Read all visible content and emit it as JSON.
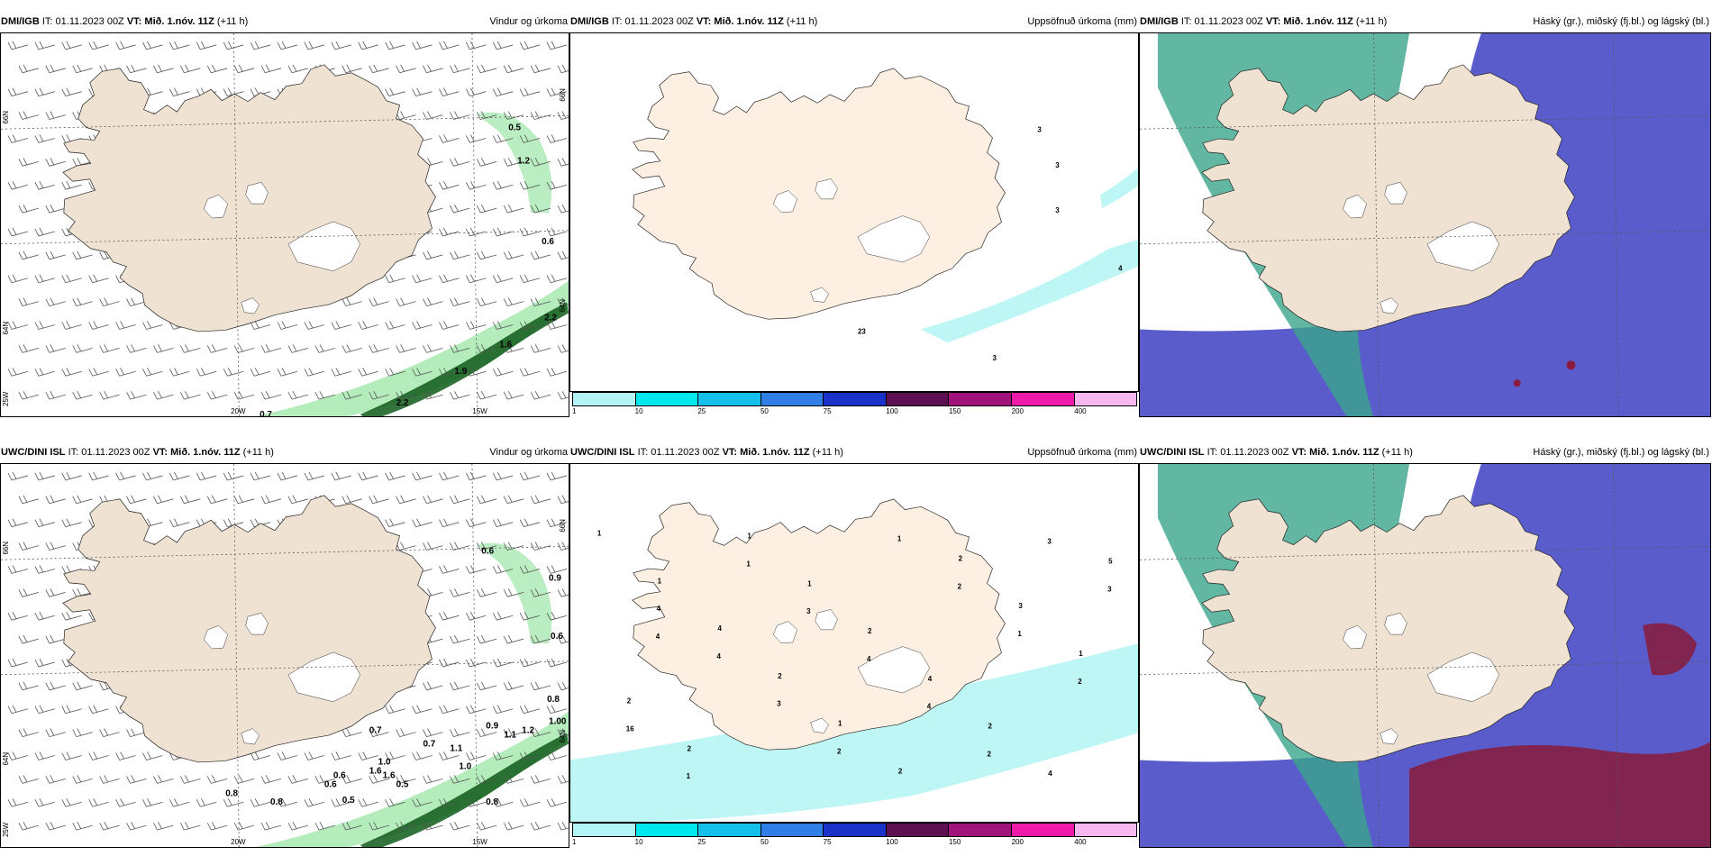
{
  "panels": [
    {
      "model": "DMI/IGB",
      "it_label": "IT:",
      "it_value": "01.11.2023 00Z",
      "vt_label": "VT:",
      "vt_value": "Mið. 1.nóv. 11Z",
      "lead": "(+11 h)",
      "product": "Vindur og úrkoma",
      "lon_labels": [
        "20W",
        "15W"
      ],
      "lat_labels": [
        "66N",
        "64N",
        "25W"
      ],
      "right_lat_labels": [
        "66N",
        "64N"
      ],
      "values": [
        "0.5",
        "1.2",
        "0.6",
        "2.2",
        "1.6",
        "1.9",
        "2.2",
        "0.7"
      ]
    },
    {
      "model": "DMI/IGB",
      "it_label": "IT:",
      "it_value": "01.11.2023 00Z",
      "vt_label": "VT:",
      "vt_value": "Mið. 1.nóv. 11Z",
      "lead": "(+11 h)",
      "product": "Uppsöfnuð úrkoma (mm)",
      "values": [
        "3",
        "3",
        "3",
        "4",
        "3",
        "23"
      ]
    },
    {
      "model": "DMI/IGB",
      "it_label": "IT:",
      "it_value": "01.11.2023 00Z",
      "vt_label": "VT:",
      "vt_value": "Mið. 1.nóv. 11Z",
      "lead": "(+11 h)",
      "product": "Háský (gr.), miðský (fj.bl.) og lágský (bl.)"
    },
    {
      "model": "UWC/DINI ISL",
      "it_label": "IT:",
      "it_value": "01.11.2023 00Z",
      "vt_label": "VT:",
      "vt_value": "Mið. 1.nóv. 11Z",
      "lead": "(+11 h)",
      "product": "Vindur og úrkoma",
      "lon_labels": [
        "20W",
        "15W"
      ],
      "lat_labels": [
        "66N",
        "64N",
        "25W"
      ],
      "right_lat_labels": [
        "66N",
        "64N"
      ],
      "values": [
        "0.6",
        "0.7",
        "0.9",
        "0.6",
        "0.7",
        "1.0",
        "0.6",
        "1.1",
        "0.9",
        "1.1",
        "1.0",
        "1.2",
        "0.8",
        "0.5",
        "0.6",
        "0.8",
        "0.8",
        "1.00",
        "1.6",
        "1.6",
        "0.5",
        "0.8"
      ]
    },
    {
      "model": "UWC/DINI ISL",
      "it_label": "IT:",
      "it_value": "01.11.2023 00Z",
      "vt_label": "VT:",
      "vt_value": "Mið. 1.nóv. 11Z",
      "lead": "(+11 h)",
      "product": "Uppsöfnuð úrkoma (mm)",
      "values": [
        "1",
        "1",
        "4",
        "2",
        "1",
        "2",
        "2",
        "3",
        "1",
        "2",
        "2",
        "1",
        "1",
        "2",
        "4",
        "2",
        "4",
        "5",
        "4",
        "4",
        "3",
        "2",
        "1",
        "2",
        "1",
        "2",
        "16",
        "1",
        "1",
        "3",
        "4",
        "4",
        "2",
        "3",
        "3",
        "4"
      ]
    },
    {
      "model": "UWC/DINI ISL",
      "it_label": "IT:",
      "it_value": "01.11.2023 00Z",
      "vt_label": "VT:",
      "vt_value": "Mið. 1.nóv. 11Z",
      "lead": "(+11 h)",
      "product": "Háský (gr.), miðský (fj.bl.) og lágský (bl.)"
    }
  ],
  "colorbar": {
    "ticks": [
      "1",
      "10",
      "25",
      "50",
      "75",
      "100",
      "150",
      "200",
      "400"
    ],
    "colors": [
      "#b3f5f6",
      "#00e8ee",
      "#14bfea",
      "#2f7fe6",
      "#1b32c9",
      "#5e0f52",
      "#a0137a",
      "#f01aa8",
      "#f7b8f0"
    ]
  },
  "colors": {
    "land": "#efe2d3",
    "land_precip": "#fdf0e2",
    "precip_light": "#9ce6a6",
    "precip_dark": "#0f5a1a",
    "precip_cyan": "#aef3f3",
    "cloud_high": "#3aa58b",
    "cloud_mid": "#3c3fc1",
    "cloud_low": "#8a1a3b"
  }
}
